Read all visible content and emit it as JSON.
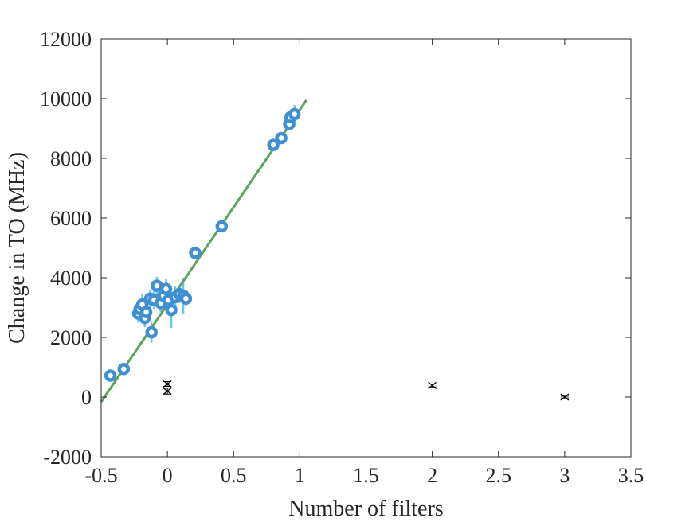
{
  "chart_data": {
    "type": "scatter",
    "title": "",
    "xlabel": "Number of filters",
    "ylabel": "Change in TO (MHz)",
    "xlim": [
      -0.5,
      3.5
    ],
    "ylim": [
      -2000,
      12000
    ],
    "xticks": [
      "-0.5",
      "0",
      "0.5",
      "1",
      "1.5",
      "2",
      "2.5",
      "3",
      "3.5"
    ],
    "xtick_values": [
      -0.5,
      0,
      0.5,
      1,
      1.5,
      2,
      2.5,
      3,
      3.5
    ],
    "yticks": [
      "-2000",
      "0",
      "2000",
      "4000",
      "6000",
      "8000",
      "10000",
      "12000"
    ],
    "ytick_values": [
      -2000,
      0,
      2000,
      4000,
      6000,
      8000,
      10000,
      12000
    ],
    "grid": false,
    "colors": {
      "points": "#3f8fd1",
      "errorbars": "#6fc3ef",
      "fit": "#5fa05f",
      "crosses": "#000000",
      "axes": "#262626"
    },
    "series": [
      {
        "type": "scatter-errorbar",
        "points": [
          {
            "x": -0.43,
            "y": 720,
            "err": 80
          },
          {
            "x": -0.33,
            "y": 940,
            "err": 80
          },
          {
            "x": -0.22,
            "y": 2800,
            "err": 300
          },
          {
            "x": -0.21,
            "y": 2950,
            "err": 300
          },
          {
            "x": -0.19,
            "y": 3100,
            "err": 350
          },
          {
            "x": -0.17,
            "y": 2650,
            "err": 300
          },
          {
            "x": -0.16,
            "y": 2850,
            "err": 300
          },
          {
            "x": -0.13,
            "y": 3300,
            "err": 300
          },
          {
            "x": -0.12,
            "y": 2170,
            "err": 350
          },
          {
            "x": -0.1,
            "y": 3250,
            "err": 300
          },
          {
            "x": -0.08,
            "y": 3730,
            "err": 300
          },
          {
            "x": -0.05,
            "y": 3150,
            "err": 300
          },
          {
            "x": -0.03,
            "y": 3400,
            "err": 300
          },
          {
            "x": -0.01,
            "y": 3620,
            "err": 350
          },
          {
            "x": 0.01,
            "y": 3250,
            "err": 300
          },
          {
            "x": 0.03,
            "y": 2920,
            "err": 600
          },
          {
            "x": 0.06,
            "y": 3350,
            "err": 350
          },
          {
            "x": 0.09,
            "y": 3450,
            "err": 300
          },
          {
            "x": 0.12,
            "y": 3400,
            "err": 600
          },
          {
            "x": 0.14,
            "y": 3300,
            "err": 250
          },
          {
            "x": 0.21,
            "y": 4830,
            "err": 100
          },
          {
            "x": 0.41,
            "y": 5720,
            "err": 100
          },
          {
            "x": 0.8,
            "y": 8450,
            "err": 100
          },
          {
            "x": 0.86,
            "y": 8680,
            "err": 100
          },
          {
            "x": 0.92,
            "y": 9150,
            "err": 100
          },
          {
            "x": 0.93,
            "y": 9380,
            "err": 150
          },
          {
            "x": 0.96,
            "y": 9480,
            "err": 300
          }
        ]
      },
      {
        "type": "cross-errorbar",
        "points": [
          {
            "x": 0,
            "y": 440,
            "err": 80
          },
          {
            "x": 0,
            "y": 200,
            "err": 100
          },
          {
            "x": 2,
            "y": 390,
            "err": 50
          },
          {
            "x": 3,
            "y": 0,
            "err": 30
          }
        ]
      },
      {
        "type": "line",
        "x": [
          -0.5,
          1.05
        ],
        "y": [
          -160,
          9950
        ]
      }
    ]
  }
}
